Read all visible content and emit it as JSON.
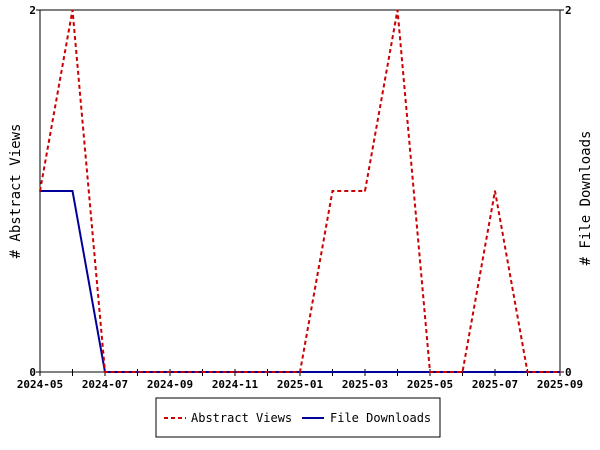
{
  "chart_data": {
    "type": "line",
    "x": [
      "2024-05",
      "2024-06",
      "2024-07",
      "2024-08",
      "2024-09",
      "2024-10",
      "2024-11",
      "2024-12",
      "2025-01",
      "2025-02",
      "2025-03",
      "2025-04",
      "2025-05",
      "2025-06",
      "2025-07",
      "2025-08",
      "2025-09"
    ],
    "x_tick_labels": [
      "2024-05",
      "2024-07",
      "2024-09",
      "2024-11",
      "2025-01",
      "2025-03",
      "2025-05",
      "2025-07",
      "2025-09"
    ],
    "series": [
      {
        "name": "Abstract Views",
        "axis": "left",
        "color": "#cc0000",
        "dash": "dashed",
        "values": [
          1,
          2,
          0,
          0,
          0,
          0,
          0,
          0,
          0,
          1,
          1,
          2,
          0,
          0,
          1,
          0,
          0
        ]
      },
      {
        "name": "File Downloads",
        "axis": "right",
        "color": "#000099",
        "dash": "solid",
        "values": [
          1,
          1,
          0,
          0,
          0,
          0,
          0,
          0,
          0,
          0,
          0,
          0,
          0,
          0,
          0,
          0,
          0
        ]
      }
    ],
    "ylabel_left": "# Abstract Views",
    "ylabel_right": "# File Downloads",
    "ylim_left": [
      0,
      2
    ],
    "ylim_right": [
      0,
      2
    ],
    "y_ticks_left": [
      "0",
      "2"
    ],
    "y_ticks_right": [
      "0",
      "2"
    ],
    "grid": false,
    "legend_position": "bottom-center"
  }
}
